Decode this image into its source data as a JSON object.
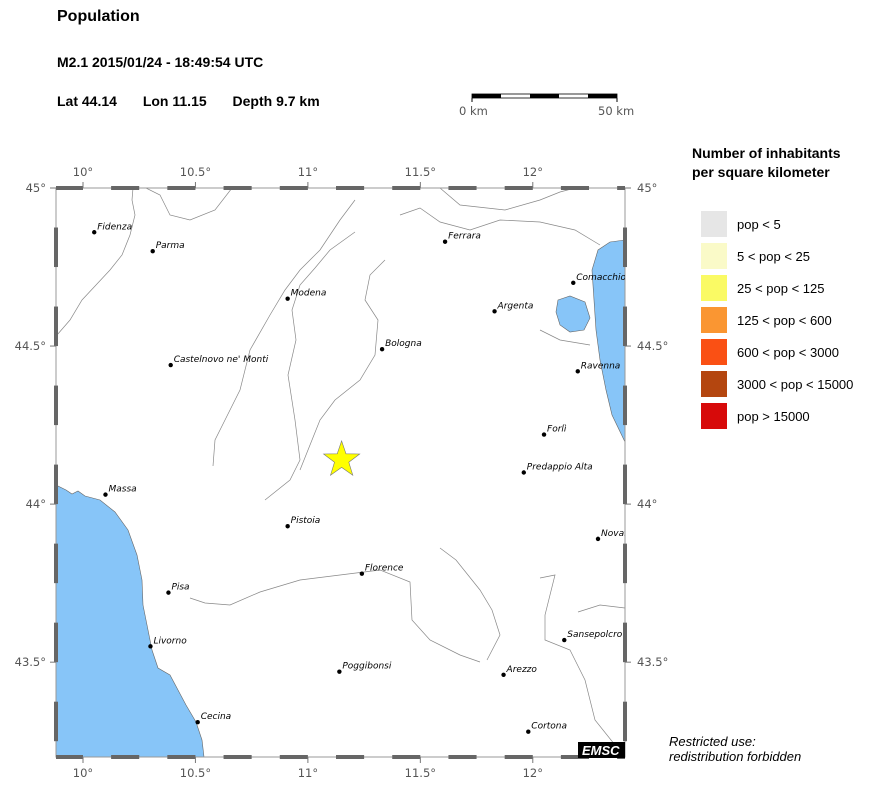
{
  "header": {
    "title": "Population",
    "event": "M2.1  2015/01/24 - 18:49:54 UTC",
    "lat": "Lat 44.14",
    "lon": "Lon  11.15",
    "depth": "Depth  9.7 km"
  },
  "scale_bar": {
    "start_label": "0 km",
    "end_label": "50 km"
  },
  "map": {
    "lon_range": [
      9.88,
      12.41
    ],
    "lat_range": [
      43.2,
      45.0
    ],
    "lon_ticks": [
      "10°",
      "10.5°",
      "11°",
      "11.5°",
      "12°"
    ],
    "lon_tick_values": [
      10,
      10.5,
      11,
      11.5,
      12
    ],
    "lat_ticks": [
      "45°",
      "44.5°",
      "44°",
      "43.5°"
    ],
    "lat_tick_values": [
      45,
      44.5,
      44,
      43.5
    ],
    "sea_color": "#87c5f8",
    "epicenter": {
      "lon": 11.15,
      "lat": 44.14,
      "color": "#ffff00",
      "icon": "star-icon"
    },
    "cities": [
      {
        "name": "Fidenza",
        "lon": 10.05,
        "lat": 44.86
      },
      {
        "name": "Parma",
        "lon": 10.31,
        "lat": 44.8
      },
      {
        "name": "Modena",
        "lon": 10.91,
        "lat": 44.65
      },
      {
        "name": "Castelnovo ne' Monti",
        "lon": 10.39,
        "lat": 44.44
      },
      {
        "name": "Bologna",
        "lon": 11.33,
        "lat": 44.49
      },
      {
        "name": "Ferrara",
        "lon": 11.61,
        "lat": 44.83
      },
      {
        "name": "Argenta",
        "lon": 11.83,
        "lat": 44.61
      },
      {
        "name": "Comacchio",
        "lon": 12.18,
        "lat": 44.7
      },
      {
        "name": "Ravenna",
        "lon": 12.2,
        "lat": 44.42
      },
      {
        "name": "Forlì",
        "lon": 12.05,
        "lat": 44.22
      },
      {
        "name": "Predappio Alta",
        "lon": 11.96,
        "lat": 44.1
      },
      {
        "name": "Massa",
        "lon": 10.1,
        "lat": 44.03
      },
      {
        "name": "Pistoia",
        "lon": 10.91,
        "lat": 43.93
      },
      {
        "name": "Florence",
        "lon": 11.24,
        "lat": 43.78
      },
      {
        "name": "Pisa",
        "lon": 10.38,
        "lat": 43.72
      },
      {
        "name": "Livorno",
        "lon": 10.3,
        "lat": 43.55
      },
      {
        "name": "Poggibonsi",
        "lon": 11.14,
        "lat": 43.47
      },
      {
        "name": "Arezzo",
        "lon": 11.87,
        "lat": 43.46
      },
      {
        "name": "Sansepolcro",
        "lon": 12.14,
        "lat": 43.57
      },
      {
        "name": "Novafeltria",
        "lon": 12.29,
        "lat": 43.89
      },
      {
        "name": "Cecina",
        "lon": 10.51,
        "lat": 43.31
      },
      {
        "name": "Cortona",
        "lon": 11.98,
        "lat": 43.28
      }
    ],
    "watermark": "EMSC"
  },
  "legend": {
    "title_line1": "Number of inhabitants",
    "title_line2": "per square kilometer",
    "items": [
      {
        "label": "pop < 5",
        "color": "#e6e6e6"
      },
      {
        "label": "5 < pop < 25",
        "color": "#fafac8"
      },
      {
        "label": "25 < pop < 125",
        "color": "#fafa64"
      },
      {
        "label": "125 < pop < 600",
        "color": "#fa9632"
      },
      {
        "label": "600 < pop < 3000",
        "color": "#fa5014"
      },
      {
        "label": "3000 < pop < 15000",
        "color": "#b4460f"
      },
      {
        "label": "pop > 15000",
        "color": "#d70a0a"
      }
    ]
  },
  "footer": {
    "line1": "Restricted use:",
    "line2": "redistribution forbidden"
  }
}
